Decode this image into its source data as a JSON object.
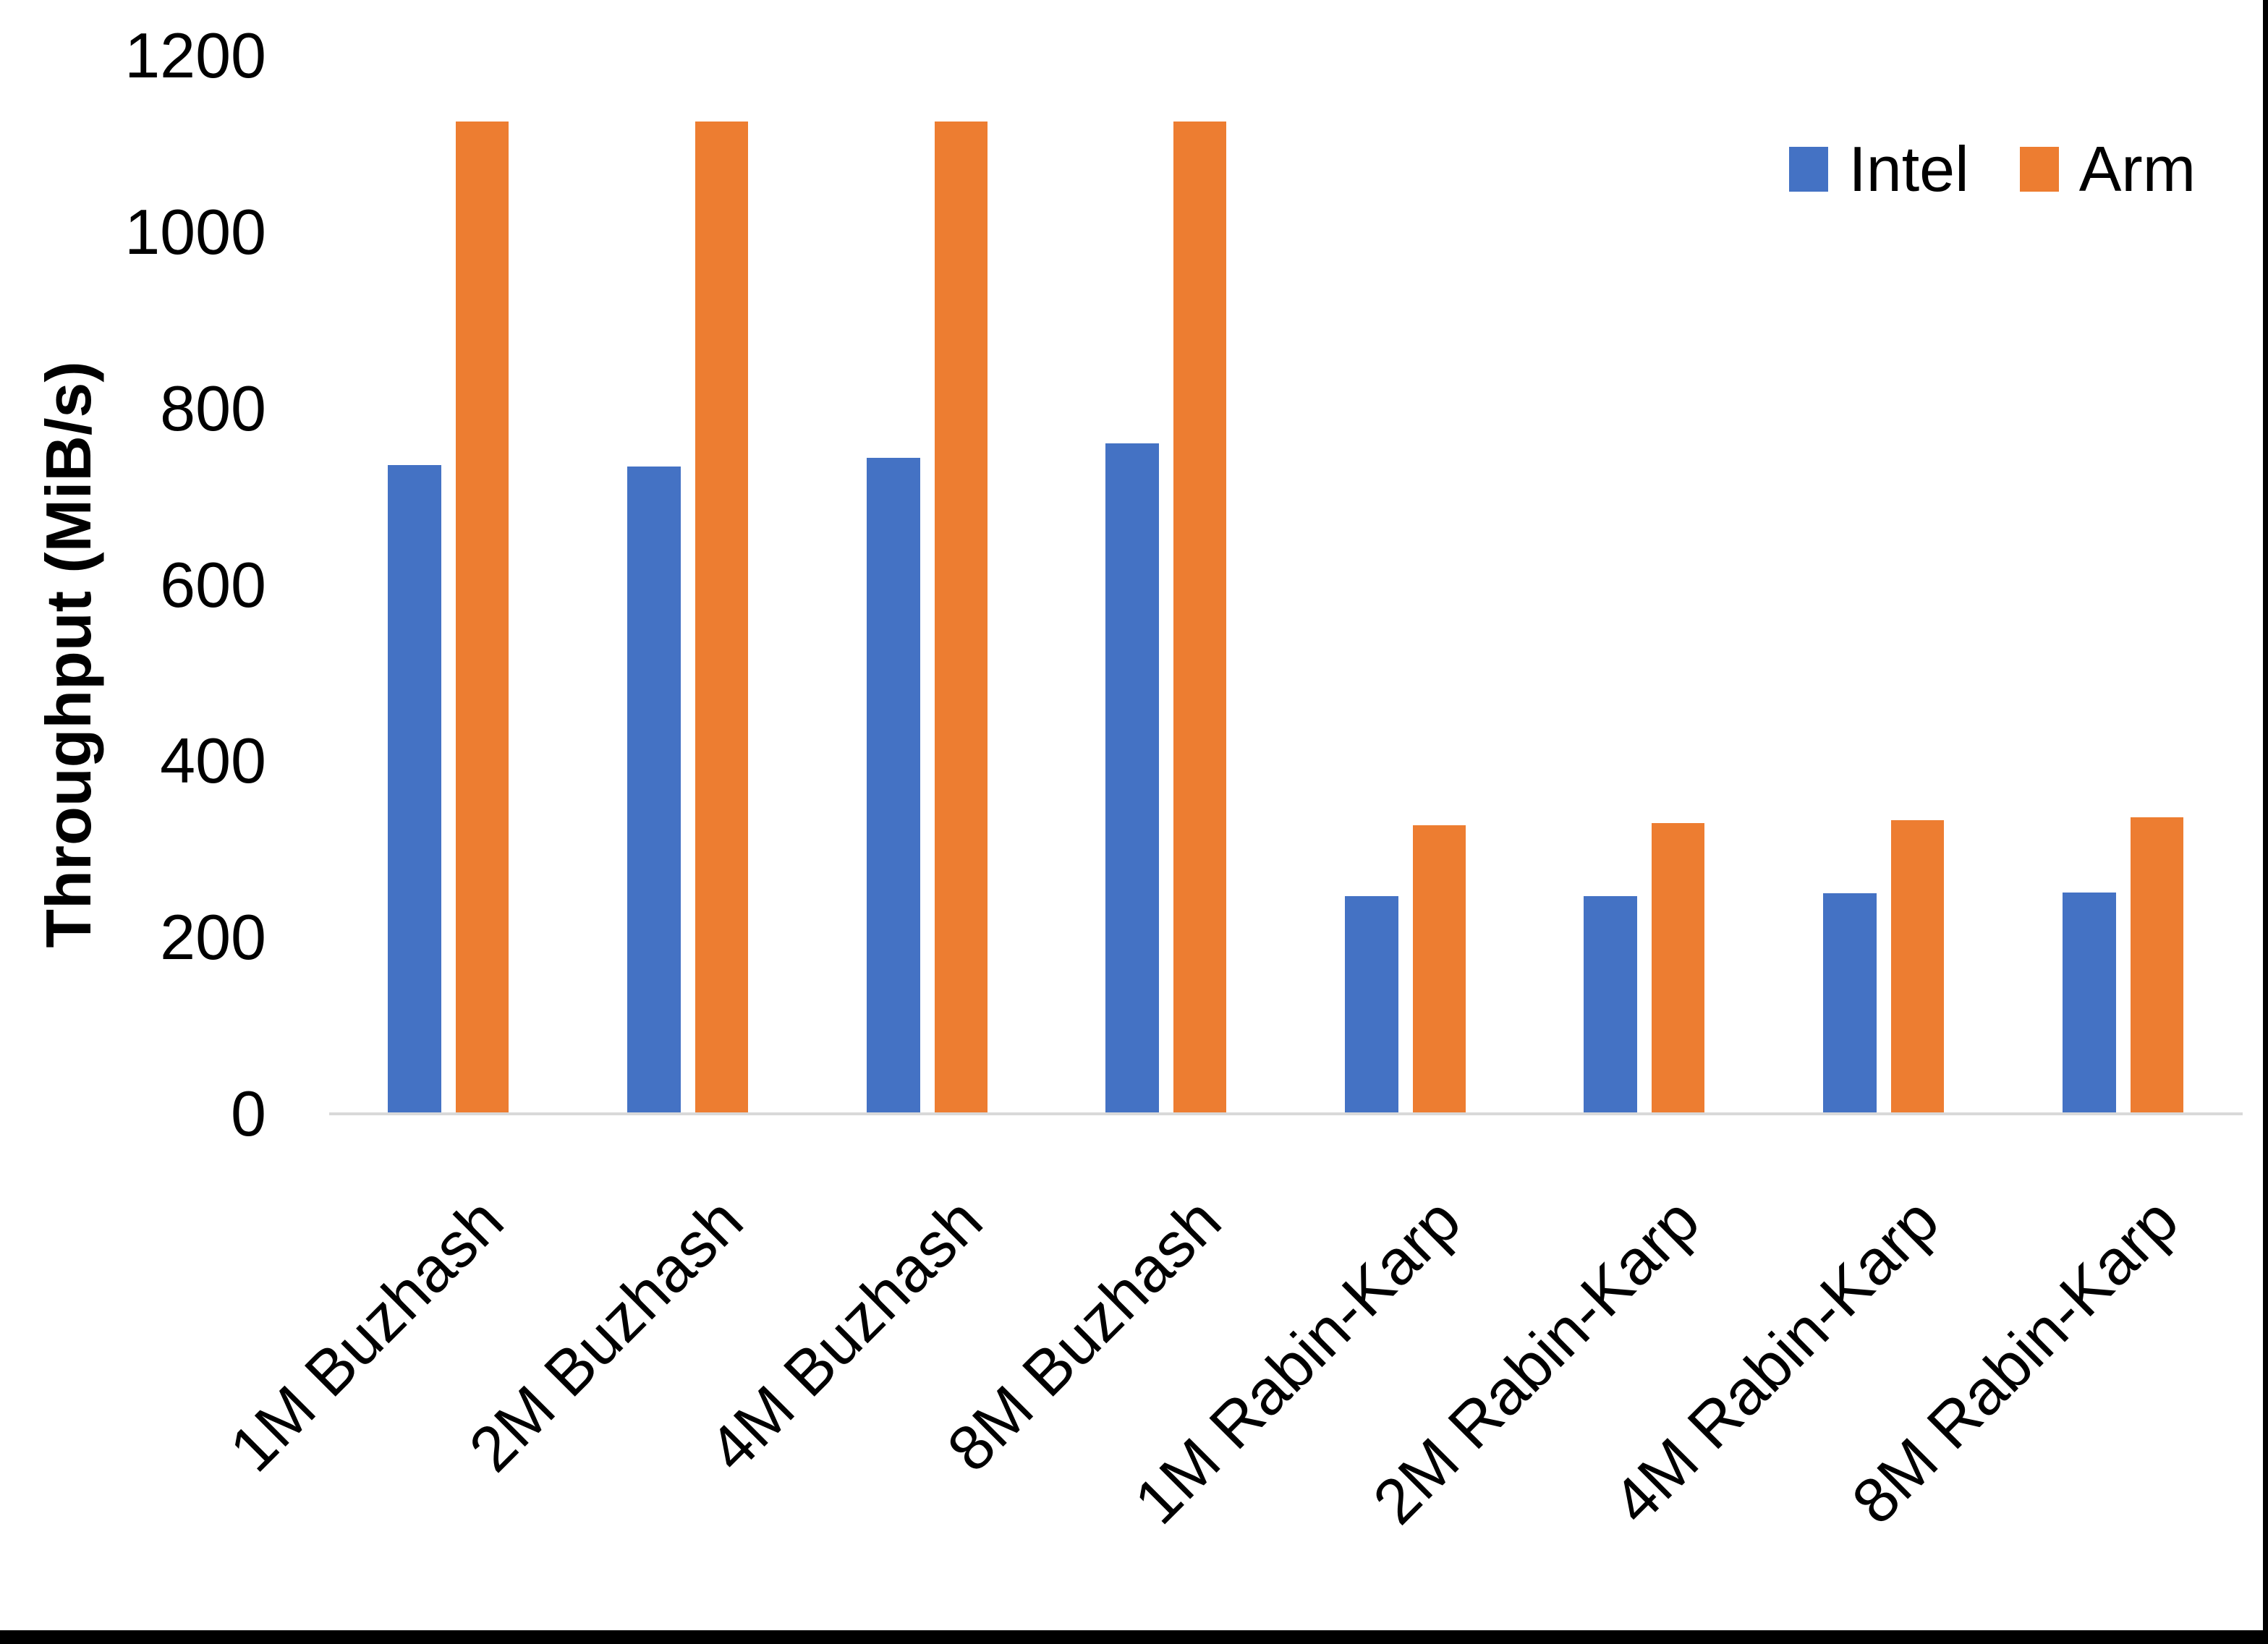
{
  "chart_data": {
    "type": "bar",
    "title": "",
    "xlabel": "",
    "ylabel": "Throughput (MiB/s)",
    "ylim": [
      0,
      1200
    ],
    "yticks": [
      0,
      200,
      400,
      600,
      800,
      1000,
      1200
    ],
    "grid": false,
    "legend_position": "top-right",
    "categories": [
      "1M Buzhash",
      "2M Buzhash",
      "4M Buzhash",
      "8M Buzhash",
      "1M Rabin-Karp",
      "2M Rabin-Karp",
      "4M Rabin-Karp",
      "8M Rabin-Karp"
    ],
    "series": [
      {
        "name": "Intel",
        "color": "#4472C4",
        "values": [
          736,
          734,
          744,
          760,
          247,
          247,
          250,
          251
        ]
      },
      {
        "name": "Arm",
        "color": "#ED7D31",
        "values": [
          1125,
          1125,
          1125,
          1125,
          327,
          330,
          333,
          336
        ]
      }
    ]
  },
  "axis_style": {
    "line_color": "#D9D9D9",
    "text_color": "#000000"
  },
  "frame": {
    "right_border_color": "#000000",
    "bottom_border_color": "#000000"
  }
}
